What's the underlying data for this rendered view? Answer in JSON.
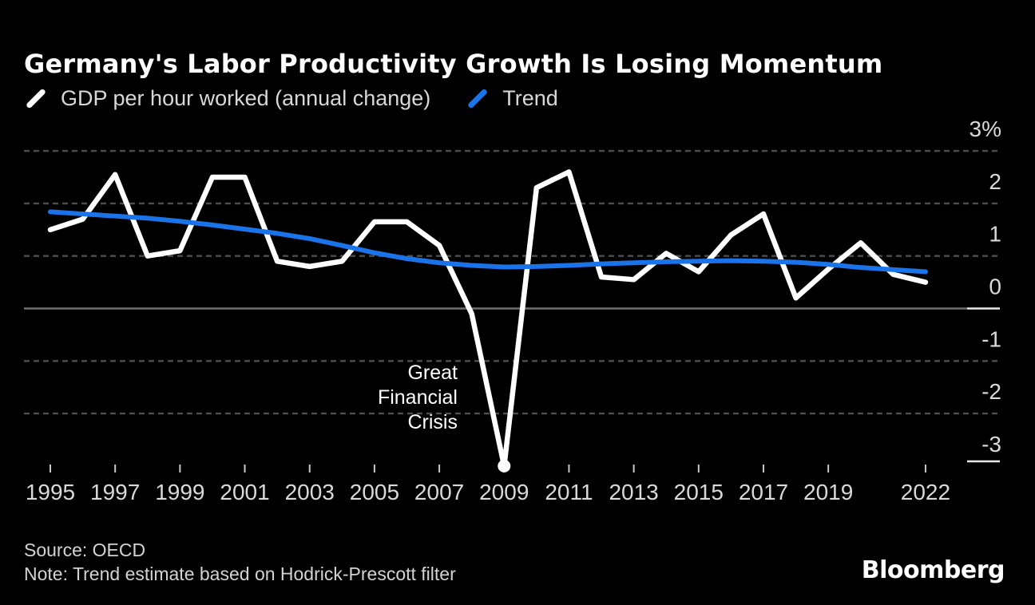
{
  "header": {
    "title": "Germany's Labor Productivity Growth Is Losing Momentum",
    "legend": [
      {
        "label": "GDP per hour worked (annual change)",
        "color": "#ffffff"
      },
      {
        "label": "Trend",
        "color": "#1a73e8"
      }
    ]
  },
  "chart_data": {
    "type": "line",
    "title": "Germany's Labor Productivity Growth Is Losing Momentum",
    "x": [
      1995,
      1996,
      1997,
      1998,
      1999,
      2000,
      2001,
      2002,
      2003,
      2004,
      2005,
      2006,
      2007,
      2008,
      2009,
      2010,
      2011,
      2012,
      2013,
      2014,
      2015,
      2016,
      2017,
      2018,
      2019,
      2020,
      2021,
      2022
    ],
    "series": [
      {
        "name": "GDP per hour worked (annual change)",
        "color": "#ffffff",
        "values": [
          1.5,
          1.7,
          2.55,
          1.0,
          1.1,
          2.5,
          2.5,
          0.9,
          0.8,
          0.9,
          1.65,
          1.65,
          1.2,
          -0.1,
          -3.0,
          2.3,
          2.6,
          0.6,
          0.55,
          1.05,
          0.7,
          1.4,
          1.8,
          0.2,
          0.75,
          1.25,
          0.65,
          0.5
        ]
      },
      {
        "name": "Trend",
        "color": "#1a73e8",
        "values": [
          1.84,
          1.8,
          1.76,
          1.72,
          1.66,
          1.59,
          1.51,
          1.43,
          1.33,
          1.2,
          1.06,
          0.95,
          0.87,
          0.82,
          0.79,
          0.8,
          0.82,
          0.85,
          0.87,
          0.89,
          0.9,
          0.91,
          0.9,
          0.88,
          0.84,
          0.78,
          0.74,
          0.7
        ]
      }
    ],
    "ylim": [
      -3.6,
      3.5
    ],
    "xlabel": "",
    "ylabel": "",
    "grid": "horizontal-dashed",
    "legend_position": "top-left",
    "y_axis": {
      "side": "right",
      "ticks": [
        {
          "value": 3,
          "label": "3%"
        },
        {
          "value": 2,
          "label": "2"
        },
        {
          "value": 1,
          "label": "1"
        },
        {
          "value": 0,
          "label": "0"
        },
        {
          "value": -1,
          "label": "-1"
        },
        {
          "value": -2,
          "label": "-2"
        },
        {
          "value": -3,
          "label": "-3"
        }
      ]
    },
    "x_axis": {
      "ticks": [
        {
          "year": 1995,
          "label": "1995"
        },
        {
          "year": 1997,
          "label": "1997"
        },
        {
          "year": 1999,
          "label": "1999"
        },
        {
          "year": 2001,
          "label": "2001"
        },
        {
          "year": 2003,
          "label": "2003"
        },
        {
          "year": 2005,
          "label": "2005"
        },
        {
          "year": 2007,
          "label": "2007"
        },
        {
          "year": 2009,
          "label": "2009"
        },
        {
          "year": 2011,
          "label": "2011"
        },
        {
          "year": 2013,
          "label": "2013"
        },
        {
          "year": 2015,
          "label": "2015"
        },
        {
          "year": 2017,
          "label": "2017"
        },
        {
          "year": 2019,
          "label": "2019"
        },
        {
          "year": 2022,
          "label": "2022"
        }
      ]
    },
    "marker": {
      "year": 2009,
      "value": -3.0,
      "shape": "circle",
      "color": "#ffffff"
    },
    "annotation": {
      "text": "Great\nFinancial\nCrisis",
      "target_year": 2009,
      "target_value": -3.0
    },
    "colors": {
      "background": "#000000",
      "gridline": "#4e4e4e",
      "zero_line": "#6f6f6f",
      "axis_text": "#d9d9d9",
      "axis_accent": "#e8e8e8",
      "tick": "#c9c9c9"
    }
  },
  "footer": {
    "source": "Source: OECD",
    "note": "Note: Trend estimate based on Hodrick-Prescott filter",
    "brand": "Bloomberg"
  }
}
